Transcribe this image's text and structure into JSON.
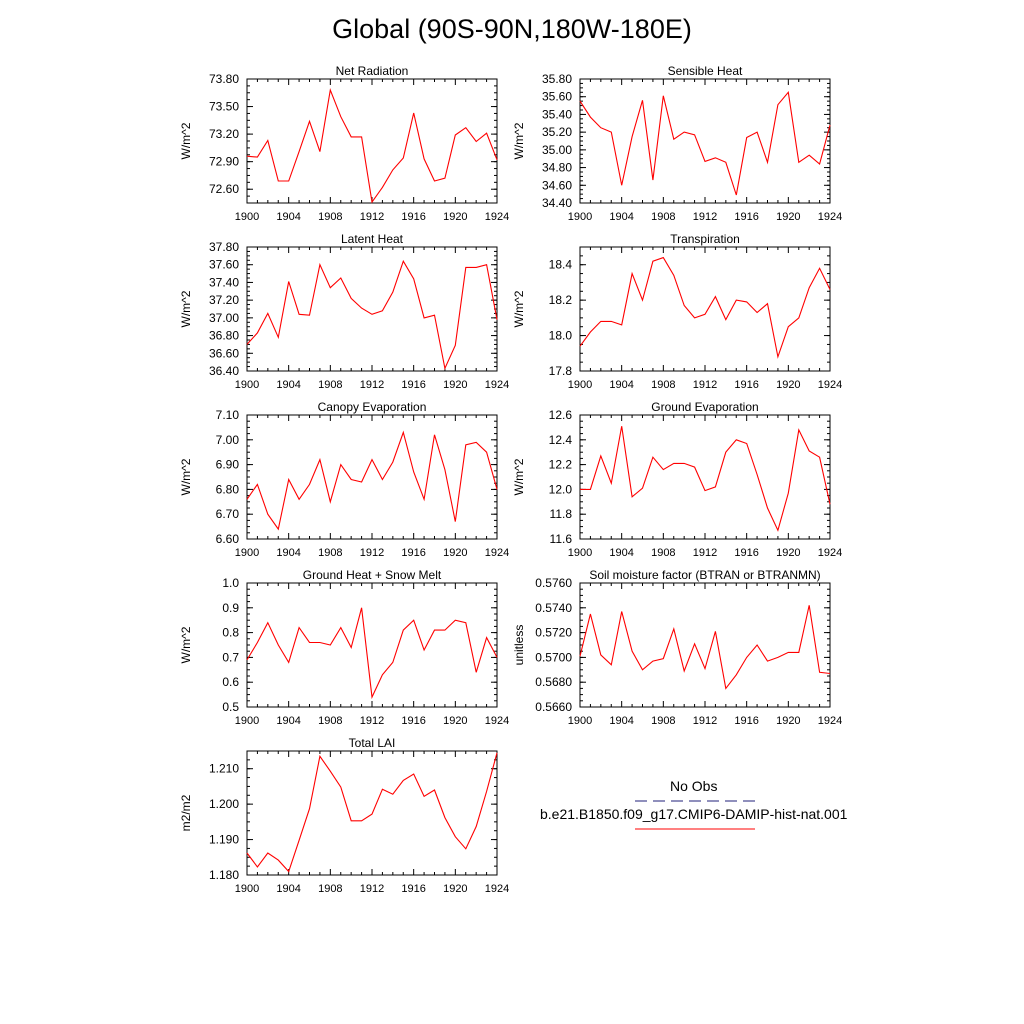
{
  "title": "Global (90S-90N,180W-180E)",
  "legend": {
    "obs_label": "No Obs",
    "obs_color": "#1f1f7a",
    "model_label": "b.e21.B1850.f09_g17.CMIP6-DAMIP-hist-nat.001",
    "model_color": "#ff0000"
  },
  "chart_data": [
    {
      "type": "line",
      "title": "Net Radiation",
      "ylabel": "W/m^2",
      "xlim": [
        1900,
        1924
      ],
      "xticks": [
        1900,
        1904,
        1908,
        1912,
        1916,
        1920,
        1924
      ],
      "ylim": [
        72.45,
        73.8
      ],
      "yticks": [
        "72.60",
        "72.90",
        "73.20",
        "73.50",
        "73.80"
      ],
      "x": [
        1900,
        1901,
        1902,
        1903,
        1904,
        1905,
        1906,
        1907,
        1908,
        1909,
        1910,
        1911,
        1912,
        1913,
        1914,
        1915,
        1916,
        1917,
        1918,
        1919,
        1920,
        1921,
        1922,
        1923,
        1924
      ],
      "series": [
        {
          "values": [
            72.96,
            72.95,
            73.13,
            72.69,
            72.69,
            73.01,
            73.34,
            73.01,
            73.68,
            73.39,
            73.17,
            73.17,
            72.46,
            72.62,
            72.81,
            72.94,
            73.43,
            72.93,
            72.69,
            72.72,
            73.19,
            73.27,
            73.12,
            73.21,
            72.92
          ]
        }
      ]
    },
    {
      "type": "line",
      "title": "Sensible Heat",
      "ylabel": "W/m^2",
      "xlim": [
        1900,
        1924
      ],
      "xticks": [
        1900,
        1904,
        1908,
        1912,
        1916,
        1920,
        1924
      ],
      "ylim": [
        34.4,
        35.8
      ],
      "yticks": [
        "34.40",
        "34.60",
        "34.80",
        "35.00",
        "35.20",
        "35.40",
        "35.60",
        "35.80"
      ],
      "x": [
        1900,
        1901,
        1902,
        1903,
        1904,
        1905,
        1906,
        1907,
        1908,
        1909,
        1910,
        1911,
        1912,
        1913,
        1914,
        1915,
        1916,
        1917,
        1918,
        1919,
        1920,
        1921,
        1922,
        1923,
        1924
      ],
      "series": [
        {
          "values": [
            35.55,
            35.37,
            35.25,
            35.2,
            34.6,
            35.15,
            35.56,
            34.66,
            35.61,
            35.12,
            35.2,
            35.17,
            34.87,
            34.91,
            34.86,
            34.49,
            35.14,
            35.2,
            34.86,
            35.51,
            35.65,
            34.86,
            34.94,
            34.84,
            35.28
          ]
        }
      ]
    },
    {
      "type": "line",
      "title": "Latent Heat",
      "ylabel": "W/m^2",
      "xlim": [
        1900,
        1924
      ],
      "xticks": [
        1900,
        1904,
        1908,
        1912,
        1916,
        1920,
        1924
      ],
      "ylim": [
        36.4,
        37.8
      ],
      "yticks": [
        "36.40",
        "36.60",
        "36.80",
        "37.00",
        "37.20",
        "37.40",
        "37.60",
        "37.80"
      ],
      "x": [
        1900,
        1901,
        1902,
        1903,
        1904,
        1905,
        1906,
        1907,
        1908,
        1909,
        1910,
        1911,
        1912,
        1913,
        1914,
        1915,
        1916,
        1917,
        1918,
        1919,
        1920,
        1921,
        1922,
        1923,
        1924
      ],
      "series": [
        {
          "values": [
            36.7,
            36.83,
            37.05,
            36.78,
            37.41,
            37.04,
            37.03,
            37.6,
            37.34,
            37.45,
            37.22,
            37.11,
            37.04,
            37.08,
            37.29,
            37.64,
            37.44,
            37.0,
            37.03,
            36.43,
            36.69,
            37.57,
            37.57,
            37.6,
            36.98
          ]
        }
      ]
    },
    {
      "type": "line",
      "title": "Transpiration",
      "ylabel": "W/m^2",
      "xlim": [
        1900,
        1924
      ],
      "xticks": [
        1900,
        1904,
        1908,
        1912,
        1916,
        1920,
        1924
      ],
      "ylim": [
        17.8,
        18.5
      ],
      "yticks": [
        "17.8",
        "18.0",
        "18.2",
        "18.4"
      ],
      "x": [
        1900,
        1901,
        1902,
        1903,
        1904,
        1905,
        1906,
        1907,
        1908,
        1909,
        1910,
        1911,
        1912,
        1913,
        1914,
        1915,
        1916,
        1917,
        1918,
        1919,
        1920,
        1921,
        1922,
        1923,
        1924
      ],
      "series": [
        {
          "values": [
            17.94,
            18.02,
            18.08,
            18.08,
            18.06,
            18.35,
            18.2,
            18.42,
            18.44,
            18.34,
            18.17,
            18.1,
            18.12,
            18.22,
            18.09,
            18.2,
            18.19,
            18.13,
            18.18,
            17.88,
            18.05,
            18.1,
            18.27,
            18.38,
            18.26
          ]
        }
      ]
    },
    {
      "type": "line",
      "title": "Canopy Evaporation",
      "ylabel": "W/m^2",
      "xlim": [
        1900,
        1924
      ],
      "xticks": [
        1900,
        1904,
        1908,
        1912,
        1916,
        1920,
        1924
      ],
      "ylim": [
        6.6,
        7.1
      ],
      "yticks": [
        "6.60",
        "6.70",
        "6.80",
        "6.90",
        "7.00",
        "7.10"
      ],
      "x": [
        1900,
        1901,
        1902,
        1903,
        1904,
        1905,
        1906,
        1907,
        1908,
        1909,
        1910,
        1911,
        1912,
        1913,
        1914,
        1915,
        1916,
        1917,
        1918,
        1919,
        1920,
        1921,
        1922,
        1923,
        1924
      ],
      "series": [
        {
          "values": [
            6.76,
            6.82,
            6.7,
            6.64,
            6.84,
            6.76,
            6.82,
            6.92,
            6.75,
            6.9,
            6.84,
            6.83,
            6.92,
            6.84,
            6.91,
            7.03,
            6.87,
            6.76,
            7.02,
            6.88,
            6.67,
            6.98,
            6.99,
            6.95,
            6.8
          ]
        }
      ]
    },
    {
      "type": "line",
      "title": "Ground Evaporation",
      "ylabel": "W/m^2",
      "xlim": [
        1900,
        1924
      ],
      "xticks": [
        1900,
        1904,
        1908,
        1912,
        1916,
        1920,
        1924
      ],
      "ylim": [
        11.6,
        12.6
      ],
      "yticks": [
        "11.6",
        "11.8",
        "12.0",
        "12.2",
        "12.4",
        "12.6"
      ],
      "x": [
        1900,
        1901,
        1902,
        1903,
        1904,
        1905,
        1906,
        1907,
        1908,
        1909,
        1910,
        1911,
        1912,
        1913,
        1914,
        1915,
        1916,
        1917,
        1918,
        1919,
        1920,
        1921,
        1922,
        1923,
        1924
      ],
      "series": [
        {
          "values": [
            12.0,
            12.0,
            12.27,
            12.05,
            12.51,
            11.94,
            12.01,
            12.26,
            12.16,
            12.21,
            12.21,
            12.18,
            11.99,
            12.02,
            12.3,
            12.4,
            12.37,
            12.12,
            11.85,
            11.67,
            11.97,
            12.48,
            12.31,
            12.26,
            11.88
          ]
        }
      ]
    },
    {
      "type": "line",
      "title": "Ground Heat + Snow Melt",
      "ylabel": "W/m^2",
      "xlim": [
        1900,
        1924
      ],
      "xticks": [
        1900,
        1904,
        1908,
        1912,
        1916,
        1920,
        1924
      ],
      "ylim": [
        0.5,
        1.0
      ],
      "yticks": [
        "0.5",
        "0.6",
        "0.7",
        "0.8",
        "0.9",
        "1.0"
      ],
      "x": [
        1900,
        1901,
        1902,
        1903,
        1904,
        1905,
        1906,
        1907,
        1908,
        1909,
        1910,
        1911,
        1912,
        1913,
        1914,
        1915,
        1916,
        1917,
        1918,
        1919,
        1920,
        1921,
        1922,
        1923,
        1924
      ],
      "series": [
        {
          "values": [
            0.69,
            0.76,
            0.84,
            0.75,
            0.68,
            0.82,
            0.76,
            0.76,
            0.75,
            0.82,
            0.74,
            0.9,
            0.54,
            0.63,
            0.68,
            0.81,
            0.85,
            0.73,
            0.81,
            0.81,
            0.85,
            0.84,
            0.64,
            0.78,
            0.7
          ]
        }
      ]
    },
    {
      "type": "line",
      "title": "Soil moisture factor (BTRAN or BTRANMN)",
      "ylabel": "unitless",
      "xlim": [
        1900,
        1924
      ],
      "xticks": [
        1900,
        1904,
        1908,
        1912,
        1916,
        1920,
        1924
      ],
      "ylim": [
        0.566,
        0.576
      ],
      "yticks": [
        "0.5660",
        "0.5680",
        "0.5700",
        "0.5720",
        "0.5740",
        "0.5760"
      ],
      "x": [
        1900,
        1901,
        1902,
        1903,
        1904,
        1905,
        1906,
        1907,
        1908,
        1909,
        1910,
        1911,
        1912,
        1913,
        1914,
        1915,
        1916,
        1917,
        1918,
        1919,
        1920,
        1921,
        1922,
        1923,
        1924
      ],
      "series": [
        {
          "values": [
            0.5701,
            0.5735,
            0.5702,
            0.5694,
            0.5737,
            0.5705,
            0.569,
            0.5697,
            0.5699,
            0.5723,
            0.5689,
            0.5711,
            0.5691,
            0.5721,
            0.5675,
            0.5686,
            0.57,
            0.571,
            0.5697,
            0.57,
            0.5704,
            0.5704,
            0.5742,
            0.5688,
            0.5687
          ]
        }
      ]
    },
    {
      "type": "line",
      "title": "Total LAI",
      "ylabel": "m2/m2",
      "xlim": [
        1900,
        1924
      ],
      "xticks": [
        1900,
        1904,
        1908,
        1912,
        1916,
        1920,
        1924
      ],
      "ylim": [
        1.18,
        1.215
      ],
      "yticks": [
        "1.180",
        "1.190",
        "1.200",
        "1.210"
      ],
      "x": [
        1900,
        1901,
        1902,
        1903,
        1904,
        1905,
        1906,
        1907,
        1908,
        1909,
        1910,
        1911,
        1912,
        1913,
        1914,
        1915,
        1916,
        1917,
        1918,
        1919,
        1920,
        1921,
        1922,
        1923,
        1924
      ],
      "series": [
        {
          "values": [
            1.1862,
            1.1823,
            1.1862,
            1.1842,
            1.181,
            1.1898,
            1.1987,
            1.2135,
            1.2093,
            1.2048,
            1.1953,
            1.1953,
            1.1972,
            1.2042,
            1.2028,
            1.2067,
            1.2085,
            1.2022,
            1.204,
            1.1962,
            1.1908,
            1.1874,
            1.1937,
            1.2036,
            1.2145
          ]
        }
      ]
    }
  ]
}
